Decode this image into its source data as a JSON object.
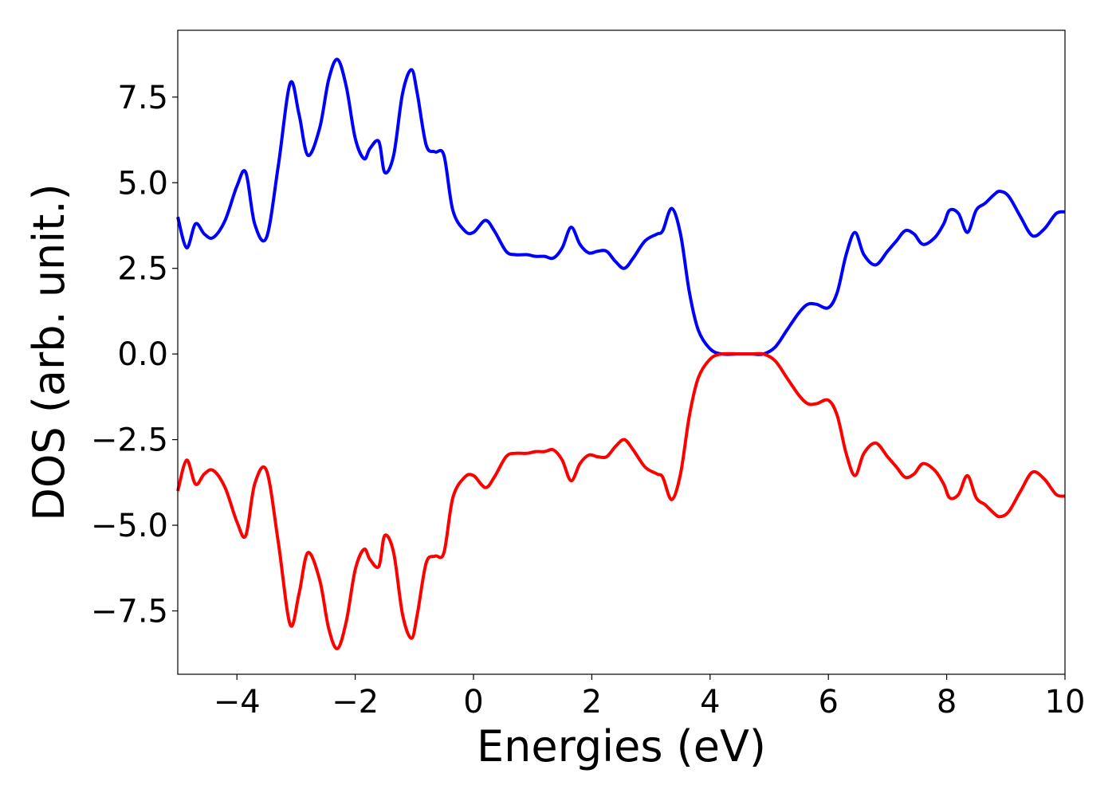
{
  "chart_data": {
    "type": "line",
    "title": "",
    "xlabel": "Energies (eV)",
    "ylabel": "DOS (arb. unit.)",
    "xlim": [
      -5,
      10
    ],
    "ylim": [
      -9.35,
      9.45
    ],
    "xticks": [
      -4,
      -2,
      0,
      2,
      4,
      6,
      8,
      10
    ],
    "xtick_labels": [
      "−4",
      "−2",
      "0",
      "2",
      "4",
      "6",
      "8",
      "10"
    ],
    "yticks": [
      -7.5,
      -5.0,
      -2.5,
      0.0,
      2.5,
      5.0,
      7.5
    ],
    "ytick_labels": [
      "−7.5",
      "−5.0",
      "−2.5",
      "0.0",
      "2.5",
      "5.0",
      "7.5"
    ],
    "grid": false,
    "legend": "none",
    "x": [
      -5.0,
      -4.85,
      -4.7,
      -4.55,
      -4.4,
      -4.2,
      -4.0,
      -3.85,
      -3.7,
      -3.5,
      -3.3,
      -3.1,
      -2.95,
      -2.8,
      -2.6,
      -2.45,
      -2.3,
      -2.15,
      -2.0,
      -1.85,
      -1.75,
      -1.6,
      -1.5,
      -1.35,
      -1.2,
      -1.05,
      -0.95,
      -0.8,
      -0.65,
      -0.5,
      -0.35,
      -0.15,
      0.0,
      0.2,
      0.35,
      0.55,
      0.7,
      0.9,
      1.05,
      1.2,
      1.35,
      1.5,
      1.65,
      1.8,
      1.95,
      2.1,
      2.25,
      2.4,
      2.55,
      2.7,
      2.9,
      3.1,
      3.2,
      3.35,
      3.5,
      3.65,
      3.8,
      4.0,
      4.2,
      4.5,
      4.7,
      4.9,
      5.1,
      5.3,
      5.5,
      5.65,
      5.8,
      6.0,
      6.15,
      6.3,
      6.45,
      6.6,
      6.8,
      7.0,
      7.15,
      7.3,
      7.45,
      7.6,
      7.8,
      7.95,
      8.05,
      8.2,
      8.35,
      8.5,
      8.65,
      8.8,
      8.9,
      9.05,
      9.25,
      9.45,
      9.65,
      9.85,
      10.0
    ],
    "series": [
      {
        "color": "#0000ff",
        "values": [
          4.0,
          3.1,
          3.8,
          3.5,
          3.4,
          3.9,
          4.9,
          5.3,
          3.8,
          3.4,
          5.5,
          7.9,
          7.0,
          5.8,
          6.6,
          8.0,
          8.6,
          7.8,
          6.3,
          5.7,
          6.0,
          6.2,
          5.3,
          5.8,
          7.6,
          8.3,
          7.6,
          6.1,
          5.9,
          5.8,
          4.2,
          3.6,
          3.55,
          3.9,
          3.6,
          3.0,
          2.9,
          2.9,
          2.85,
          2.85,
          2.8,
          3.1,
          3.7,
          3.2,
          2.95,
          3.0,
          3.0,
          2.7,
          2.5,
          2.8,
          3.3,
          3.5,
          3.6,
          4.25,
          3.5,
          1.8,
          0.7,
          0.15,
          0.0,
          0.0,
          0.0,
          0.0,
          0.2,
          0.7,
          1.2,
          1.45,
          1.45,
          1.35,
          1.8,
          2.9,
          3.55,
          2.9,
          2.6,
          3.0,
          3.3,
          3.6,
          3.5,
          3.2,
          3.4,
          3.8,
          4.2,
          4.1,
          3.55,
          4.2,
          4.4,
          4.65,
          4.75,
          4.6,
          4.0,
          3.45,
          3.65,
          4.1,
          4.15
        ]
      },
      {
        "color": "#ff0000",
        "values": [
          -4.0,
          -3.1,
          -3.8,
          -3.5,
          -3.4,
          -3.9,
          -4.9,
          -5.3,
          -3.8,
          -3.4,
          -5.5,
          -7.9,
          -7.0,
          -5.8,
          -6.6,
          -8.0,
          -8.6,
          -7.8,
          -6.3,
          -5.7,
          -6.0,
          -6.2,
          -5.3,
          -5.8,
          -7.6,
          -8.3,
          -7.6,
          -6.1,
          -5.9,
          -5.8,
          -4.2,
          -3.6,
          -3.55,
          -3.9,
          -3.6,
          -3.0,
          -2.9,
          -2.9,
          -2.85,
          -2.85,
          -2.8,
          -3.1,
          -3.7,
          -3.2,
          -2.95,
          -3.0,
          -3.0,
          -2.7,
          -2.5,
          -2.8,
          -3.3,
          -3.5,
          -3.6,
          -4.25,
          -3.5,
          -1.8,
          -0.7,
          -0.15,
          0.0,
          0.0,
          0.0,
          0.0,
          -0.2,
          -0.7,
          -1.2,
          -1.45,
          -1.45,
          -1.35,
          -1.8,
          -2.9,
          -3.55,
          -2.9,
          -2.6,
          -3.0,
          -3.3,
          -3.6,
          -3.5,
          -3.2,
          -3.4,
          -3.8,
          -4.2,
          -4.1,
          -3.55,
          -4.2,
          -4.4,
          -4.65,
          -4.75,
          -4.6,
          -4.0,
          -3.45,
          -3.65,
          -4.1,
          -4.15
        ]
      }
    ]
  }
}
